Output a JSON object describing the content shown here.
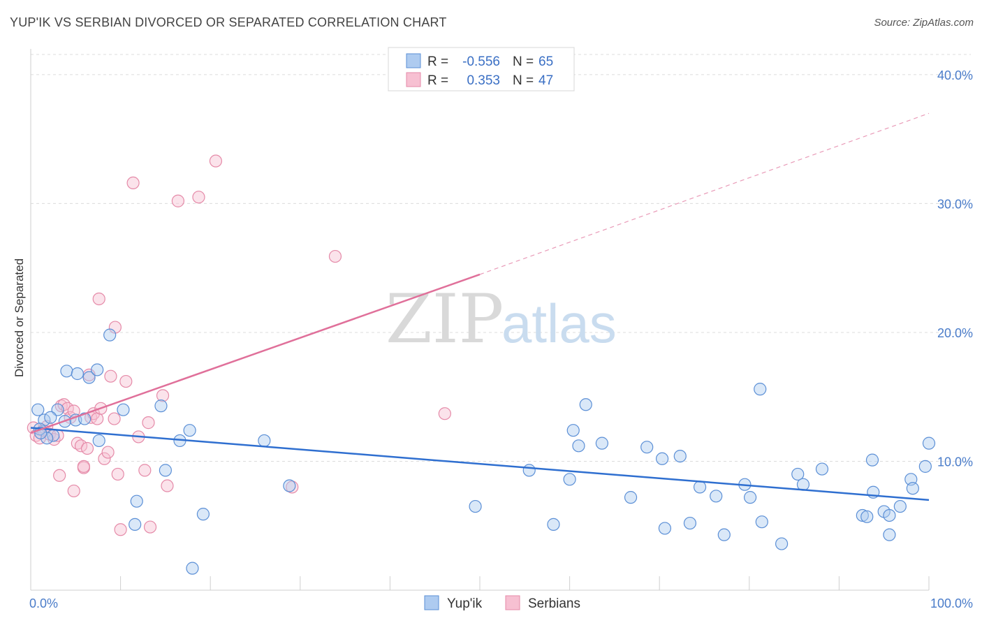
{
  "header": {
    "title": "YUP'IK VS SERBIAN DIVORCED OR SEPARATED CORRELATION CHART",
    "source": "Source: ZipAtlas.com"
  },
  "legend": {
    "rows": [
      {
        "r_label": "R =",
        "r_value": "-0.556",
        "n_label": "N =",
        "n_value": "65"
      },
      {
        "r_label": "R =",
        "r_value": "0.353",
        "n_label": "N =",
        "n_value": "47"
      }
    ]
  },
  "colors": {
    "yupik_fill": "#aecbf0",
    "yupik_stroke": "#5b8fd6",
    "yupik_line": "#2f6fd0",
    "serbian_fill": "#f7c0d2",
    "serbian_stroke": "#e58aa8",
    "serbian_line": "#e0709a"
  },
  "chart_data": {
    "type": "scatter",
    "ylabel": "Divorced or Separated",
    "xlim": [
      0,
      100
    ],
    "ylim": [
      0,
      42
    ],
    "x_ticks": [
      "0.0%",
      "100.0%"
    ],
    "y_ticks": [
      {
        "v": 10,
        "label": "10.0%"
      },
      {
        "v": 20,
        "label": "20.0%"
      },
      {
        "v": 30,
        "label": "30.0%"
      },
      {
        "v": 40,
        "label": "40.0%"
      }
    ],
    "series": [
      {
        "name": "Yup'ik",
        "r": -0.556,
        "n": 65,
        "trend": {
          "x0": 0,
          "y0": 12.6,
          "x1": 100,
          "y1": 7.0
        },
        "points": [
          [
            0.8,
            14.0
          ],
          [
            1.5,
            13.2
          ],
          [
            1.0,
            12.5
          ],
          [
            2.5,
            12.0
          ],
          [
            1.8,
            11.8
          ],
          [
            3.0,
            14.0
          ],
          [
            4.0,
            17.0
          ],
          [
            5.0,
            13.2
          ],
          [
            5.2,
            16.8
          ],
          [
            6.5,
            16.5
          ],
          [
            7.4,
            17.1
          ],
          [
            7.6,
            11.6
          ],
          [
            8.8,
            19.8
          ],
          [
            10.3,
            14.0
          ],
          [
            11.8,
            6.9
          ],
          [
            11.6,
            5.1
          ],
          [
            14.5,
            14.3
          ],
          [
            15.0,
            9.3
          ],
          [
            16.6,
            11.6
          ],
          [
            17.7,
            12.4
          ],
          [
            18.0,
            1.7
          ],
          [
            19.2,
            5.9
          ],
          [
            26.0,
            11.6
          ],
          [
            28.8,
            8.1
          ],
          [
            49.5,
            6.5
          ],
          [
            55.5,
            9.3
          ],
          [
            58.2,
            5.1
          ],
          [
            60.0,
            8.6
          ],
          [
            60.4,
            12.4
          ],
          [
            61.0,
            11.2
          ],
          [
            61.8,
            14.4
          ],
          [
            63.6,
            11.4
          ],
          [
            66.8,
            7.2
          ],
          [
            68.6,
            11.1
          ],
          [
            70.3,
            10.2
          ],
          [
            70.6,
            4.8
          ],
          [
            72.3,
            10.4
          ],
          [
            73.4,
            5.2
          ],
          [
            74.5,
            8.0
          ],
          [
            76.3,
            7.3
          ],
          [
            77.2,
            4.3
          ],
          [
            79.5,
            8.2
          ],
          [
            80.1,
            7.2
          ],
          [
            81.2,
            15.6
          ],
          [
            81.4,
            5.3
          ],
          [
            83.6,
            3.6
          ],
          [
            85.4,
            9.0
          ],
          [
            86.0,
            8.2
          ],
          [
            88.1,
            9.4
          ],
          [
            92.6,
            5.8
          ],
          [
            93.1,
            5.7
          ],
          [
            93.7,
            10.1
          ],
          [
            93.8,
            7.6
          ],
          [
            95.0,
            6.1
          ],
          [
            95.6,
            5.8
          ],
          [
            95.6,
            4.3
          ],
          [
            96.8,
            6.5
          ],
          [
            98.0,
            8.6
          ],
          [
            98.2,
            7.9
          ],
          [
            99.6,
            9.6
          ],
          [
            100.0,
            11.4
          ],
          [
            1.1,
            12.2
          ],
          [
            3.8,
            13.1
          ],
          [
            2.2,
            13.4
          ],
          [
            6.0,
            13.3
          ]
        ]
      },
      {
        "name": "Serbians",
        "r": 0.353,
        "n": 47,
        "trend": {
          "x0": 0,
          "y0": 12.2,
          "x1": 50,
          "y1": 24.5,
          "dash_x1": 100,
          "dash_y1": 37.0
        },
        "points": [
          [
            0.3,
            12.6
          ],
          [
            0.6,
            12.0
          ],
          [
            1.0,
            11.8
          ],
          [
            1.4,
            12.4
          ],
          [
            1.8,
            12.7
          ],
          [
            2.1,
            12.1
          ],
          [
            2.6,
            11.7
          ],
          [
            3.0,
            12.0
          ],
          [
            3.4,
            14.3
          ],
          [
            3.7,
            14.4
          ],
          [
            4.1,
            14.1
          ],
          [
            4.4,
            13.4
          ],
          [
            4.8,
            13.9
          ],
          [
            5.2,
            11.4
          ],
          [
            5.6,
            11.2
          ],
          [
            5.9,
            9.5
          ],
          [
            6.3,
            11.0
          ],
          [
            6.7,
            13.4
          ],
          [
            7.0,
            13.7
          ],
          [
            7.4,
            13.3
          ],
          [
            7.8,
            14.1
          ],
          [
            8.2,
            10.2
          ],
          [
            8.6,
            10.7
          ],
          [
            8.9,
            16.6
          ],
          [
            9.3,
            13.3
          ],
          [
            9.7,
            9.0
          ],
          [
            10.0,
            4.7
          ],
          [
            10.6,
            16.2
          ],
          [
            11.4,
            31.6
          ],
          [
            12.0,
            11.9
          ],
          [
            12.7,
            9.3
          ],
          [
            13.1,
            13.0
          ],
          [
            13.3,
            4.9
          ],
          [
            14.7,
            15.1
          ],
          [
            15.2,
            8.1
          ],
          [
            16.4,
            30.2
          ],
          [
            18.7,
            30.5
          ],
          [
            20.6,
            33.3
          ],
          [
            29.1,
            8.0
          ],
          [
            33.9,
            25.9
          ],
          [
            46.1,
            13.7
          ],
          [
            6.5,
            16.7
          ],
          [
            7.6,
            22.6
          ],
          [
            9.4,
            20.4
          ],
          [
            3.2,
            8.9
          ],
          [
            4.8,
            7.7
          ],
          [
            5.9,
            9.6
          ]
        ]
      }
    ]
  },
  "bottom_legend": {
    "items": [
      {
        "label": "Yup'ik"
      },
      {
        "label": "Serbians"
      }
    ]
  },
  "watermark": {
    "zip": "ZIP",
    "atlas": "atlas"
  }
}
